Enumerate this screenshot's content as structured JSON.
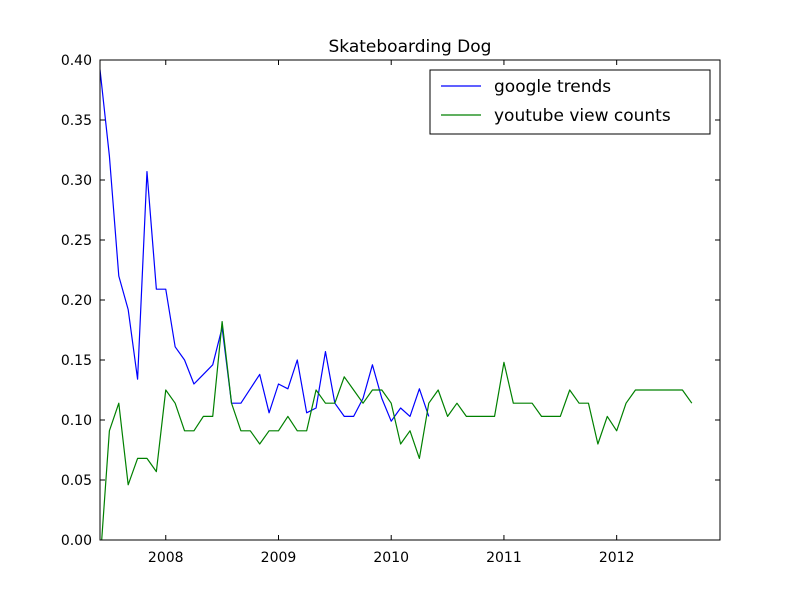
{
  "chart_data": {
    "type": "line",
    "title": "Skateboarding Dog",
    "xlabel": "",
    "ylabel": "",
    "xlim": [
      "2007-06",
      "2012-12"
    ],
    "ylim": [
      0,
      0.4
    ],
    "x_ticks": [
      "2008",
      "2009",
      "2010",
      "2011",
      "2012"
    ],
    "y_ticks": [
      "0.00",
      "0.05",
      "0.10",
      "0.15",
      "0.20",
      "0.25",
      "0.30",
      "0.35",
      "0.40"
    ],
    "grid": false,
    "legend_position": "upper right",
    "series": [
      {
        "name": "google trends",
        "color": "#0000ff",
        "points": [
          [
            "2007-06",
            0.392
          ],
          [
            "2007-07",
            0.32
          ],
          [
            "2007-08",
            0.22
          ],
          [
            "2007-09",
            0.192
          ],
          [
            "2007-10",
            0.134
          ],
          [
            "2007-11",
            0.307
          ],
          [
            "2007-12",
            0.209
          ],
          [
            "2008-01",
            0.209
          ],
          [
            "2008-02",
            0.161
          ],
          [
            "2008-03",
            0.15
          ],
          [
            "2008-04",
            0.13
          ],
          [
            "2008-05",
            0.138
          ],
          [
            "2008-06",
            0.146
          ],
          [
            "2008-07",
            0.177
          ],
          [
            "2008-08",
            0.114
          ],
          [
            "2008-09",
            0.114
          ],
          [
            "2008-10",
            0.126
          ],
          [
            "2008-11",
            0.138
          ],
          [
            "2008-12",
            0.106
          ],
          [
            "2009-01",
            0.13
          ],
          [
            "2009-02",
            0.126
          ],
          [
            "2009-03",
            0.15
          ],
          [
            "2009-04",
            0.106
          ],
          [
            "2009-05",
            0.11
          ],
          [
            "2009-06",
            0.157
          ],
          [
            "2009-07",
            0.114
          ],
          [
            "2009-08",
            0.103
          ],
          [
            "2009-09",
            0.103
          ],
          [
            "2009-10",
            0.118
          ],
          [
            "2009-11",
            0.146
          ],
          [
            "2009-12",
            0.118
          ],
          [
            "2010-01",
            0.099
          ],
          [
            "2010-02",
            0.11
          ],
          [
            "2010-03",
            0.103
          ],
          [
            "2010-04",
            0.126
          ],
          [
            "2010-05",
            0.103
          ]
        ]
      },
      {
        "name": "youtube view counts",
        "color": "#008000",
        "points": [
          [
            "2007-06",
            -0.02
          ],
          [
            "2007-07",
            0.091
          ],
          [
            "2007-08",
            0.114
          ],
          [
            "2007-09",
            0.046
          ],
          [
            "2007-10",
            0.068
          ],
          [
            "2007-11",
            0.068
          ],
          [
            "2007-12",
            0.057
          ],
          [
            "2008-01",
            0.125
          ],
          [
            "2008-02",
            0.114
          ],
          [
            "2008-03",
            0.091
          ],
          [
            "2008-04",
            0.091
          ],
          [
            "2008-05",
            0.103
          ],
          [
            "2008-06",
            0.103
          ],
          [
            "2008-07",
            0.182
          ],
          [
            "2008-08",
            0.114
          ],
          [
            "2008-09",
            0.091
          ],
          [
            "2008-10",
            0.091
          ],
          [
            "2008-11",
            0.08
          ],
          [
            "2008-12",
            0.091
          ],
          [
            "2009-01",
            0.091
          ],
          [
            "2009-02",
            0.103
          ],
          [
            "2009-03",
            0.091
          ],
          [
            "2009-04",
            0.091
          ],
          [
            "2009-05",
            0.125
          ],
          [
            "2009-06",
            0.114
          ],
          [
            "2009-07",
            0.114
          ],
          [
            "2009-08",
            0.136
          ],
          [
            "2009-09",
            0.125
          ],
          [
            "2009-10",
            0.114
          ],
          [
            "2009-11",
            0.125
          ],
          [
            "2009-12",
            0.125
          ],
          [
            "2010-01",
            0.114
          ],
          [
            "2010-02",
            0.08
          ],
          [
            "2010-03",
            0.091
          ],
          [
            "2010-04",
            0.068
          ],
          [
            "2010-05",
            0.114
          ],
          [
            "2010-06",
            0.125
          ],
          [
            "2010-07",
            0.103
          ],
          [
            "2010-08",
            0.114
          ],
          [
            "2010-09",
            0.103
          ],
          [
            "2010-10",
            0.103
          ],
          [
            "2010-11",
            0.103
          ],
          [
            "2010-12",
            0.103
          ],
          [
            "2011-01",
            0.148
          ],
          [
            "2011-02",
            0.114
          ],
          [
            "2011-03",
            0.114
          ],
          [
            "2011-04",
            0.114
          ],
          [
            "2011-05",
            0.103
          ],
          [
            "2011-06",
            0.103
          ],
          [
            "2011-07",
            0.103
          ],
          [
            "2011-08",
            0.125
          ],
          [
            "2011-09",
            0.114
          ],
          [
            "2011-10",
            0.114
          ],
          [
            "2011-11",
            0.08
          ],
          [
            "2011-12",
            0.103
          ],
          [
            "2012-01",
            0.091
          ],
          [
            "2012-02",
            0.114
          ],
          [
            "2012-03",
            0.125
          ],
          [
            "2012-04",
            0.125
          ],
          [
            "2012-05",
            0.125
          ],
          [
            "2012-06",
            0.125
          ],
          [
            "2012-07",
            0.125
          ],
          [
            "2012-08",
            0.125
          ],
          [
            "2012-09",
            0.114
          ]
        ]
      }
    ]
  }
}
